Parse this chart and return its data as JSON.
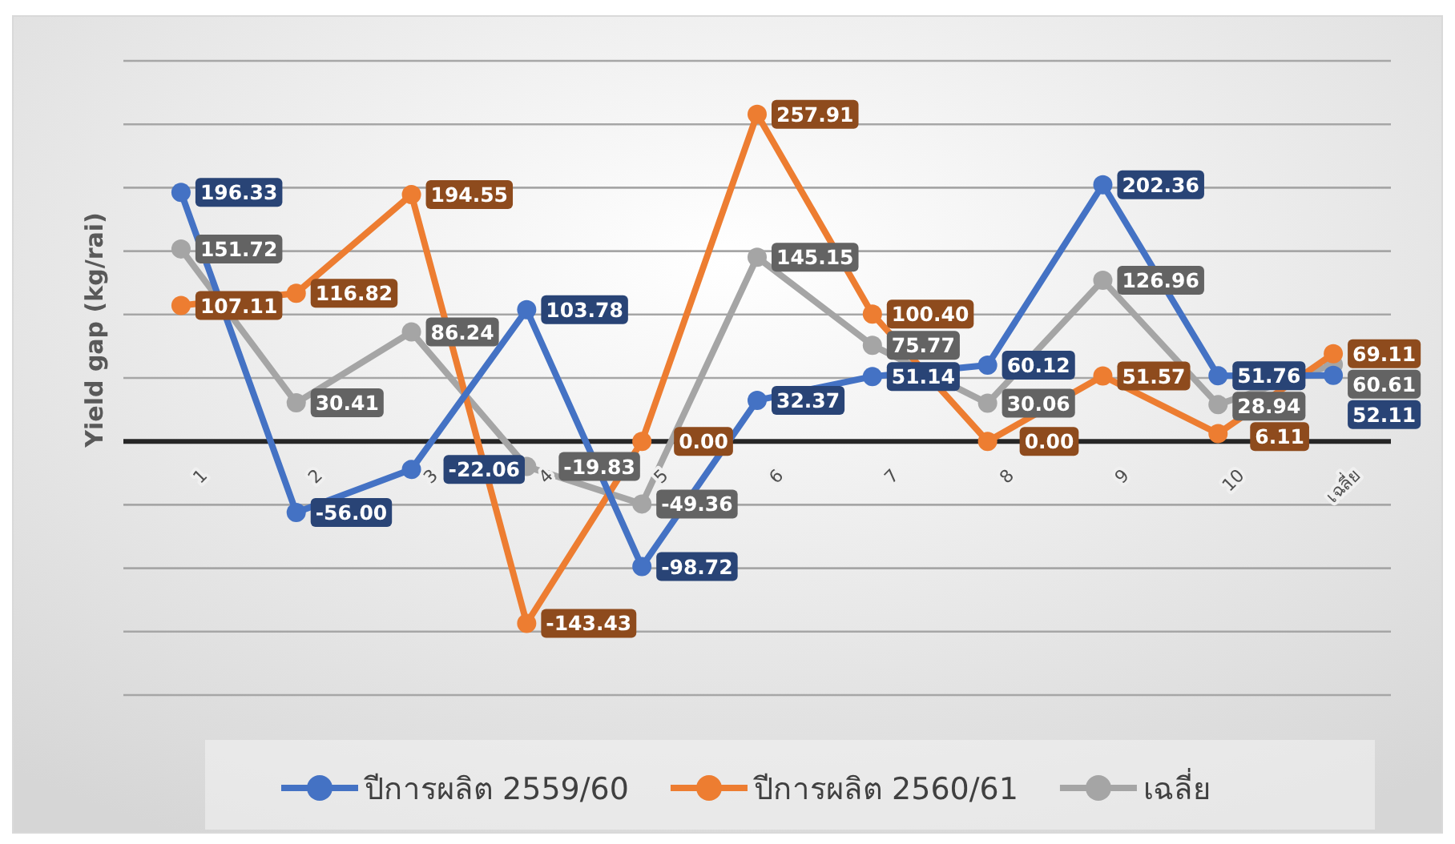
{
  "chart_data": {
    "type": "line",
    "ylabel": "Yield gap (kg/rai)",
    "categories": [
      "1",
      "2",
      "3",
      "4",
      "5",
      "6",
      "7",
      "8",
      "9",
      "10",
      "เฉลี่ย"
    ],
    "series": [
      {
        "name": "ปีการผลิต 2559/60",
        "color": "#4472c4",
        "values": [
          196.33,
          -56.0,
          -22.06,
          103.78,
          -98.72,
          32.37,
          51.14,
          60.12,
          202.36,
          51.76,
          52.11
        ],
        "value_labels": [
          "196.33",
          "-56.00",
          "-22.06",
          "103.78",
          "-98.72",
          "32.37",
          "51.14",
          "60.12",
          "202.36",
          "51.76",
          "52.11"
        ]
      },
      {
        "name": "ปีการผลิต 2560/61",
        "color": "#ed7d31",
        "values": [
          107.11,
          116.82,
          194.55,
          -143.43,
          0.0,
          257.91,
          100.4,
          0.0,
          51.57,
          6.11,
          69.11
        ],
        "value_labels": [
          "107.11",
          "116.82",
          "194.55",
          "-143.43",
          "0.00",
          "257.91",
          "100.40",
          "0.00",
          "51.57",
          "6.11",
          "69.11"
        ]
      },
      {
        "name": "เฉลี่ย",
        "color": "#a5a5a5",
        "values": [
          151.72,
          30.41,
          86.24,
          -19.83,
          -49.36,
          145.15,
          75.77,
          30.06,
          126.96,
          28.94,
          60.61
        ],
        "value_labels": [
          "151.72",
          "30.41",
          "86.24",
          "-19.83",
          "-49.36",
          "145.15",
          "75.77",
          "30.06",
          "126.96",
          "28.94",
          "60.61"
        ]
      }
    ],
    "ylim": [
      -200,
      300
    ],
    "yticks": [
      {
        "value": -200,
        "label": null
      },
      {
        "value": -150,
        "label": null
      },
      {
        "value": -100,
        "label": null
      },
      {
        "value": -50,
        "label": null
      },
      {
        "value": 0,
        "label": null
      },
      {
        "value": 50,
        "label": null
      },
      {
        "value": 100,
        "label": null
      },
      {
        "value": 150,
        "label": null
      },
      {
        "value": 200,
        "label": null
      },
      {
        "value": 250,
        "label": null
      },
      {
        "value": 300,
        "label": null
      }
    ],
    "tick_labels": "x",
    "grid": "y",
    "legend": "bottom",
    "marker": "circle"
  }
}
